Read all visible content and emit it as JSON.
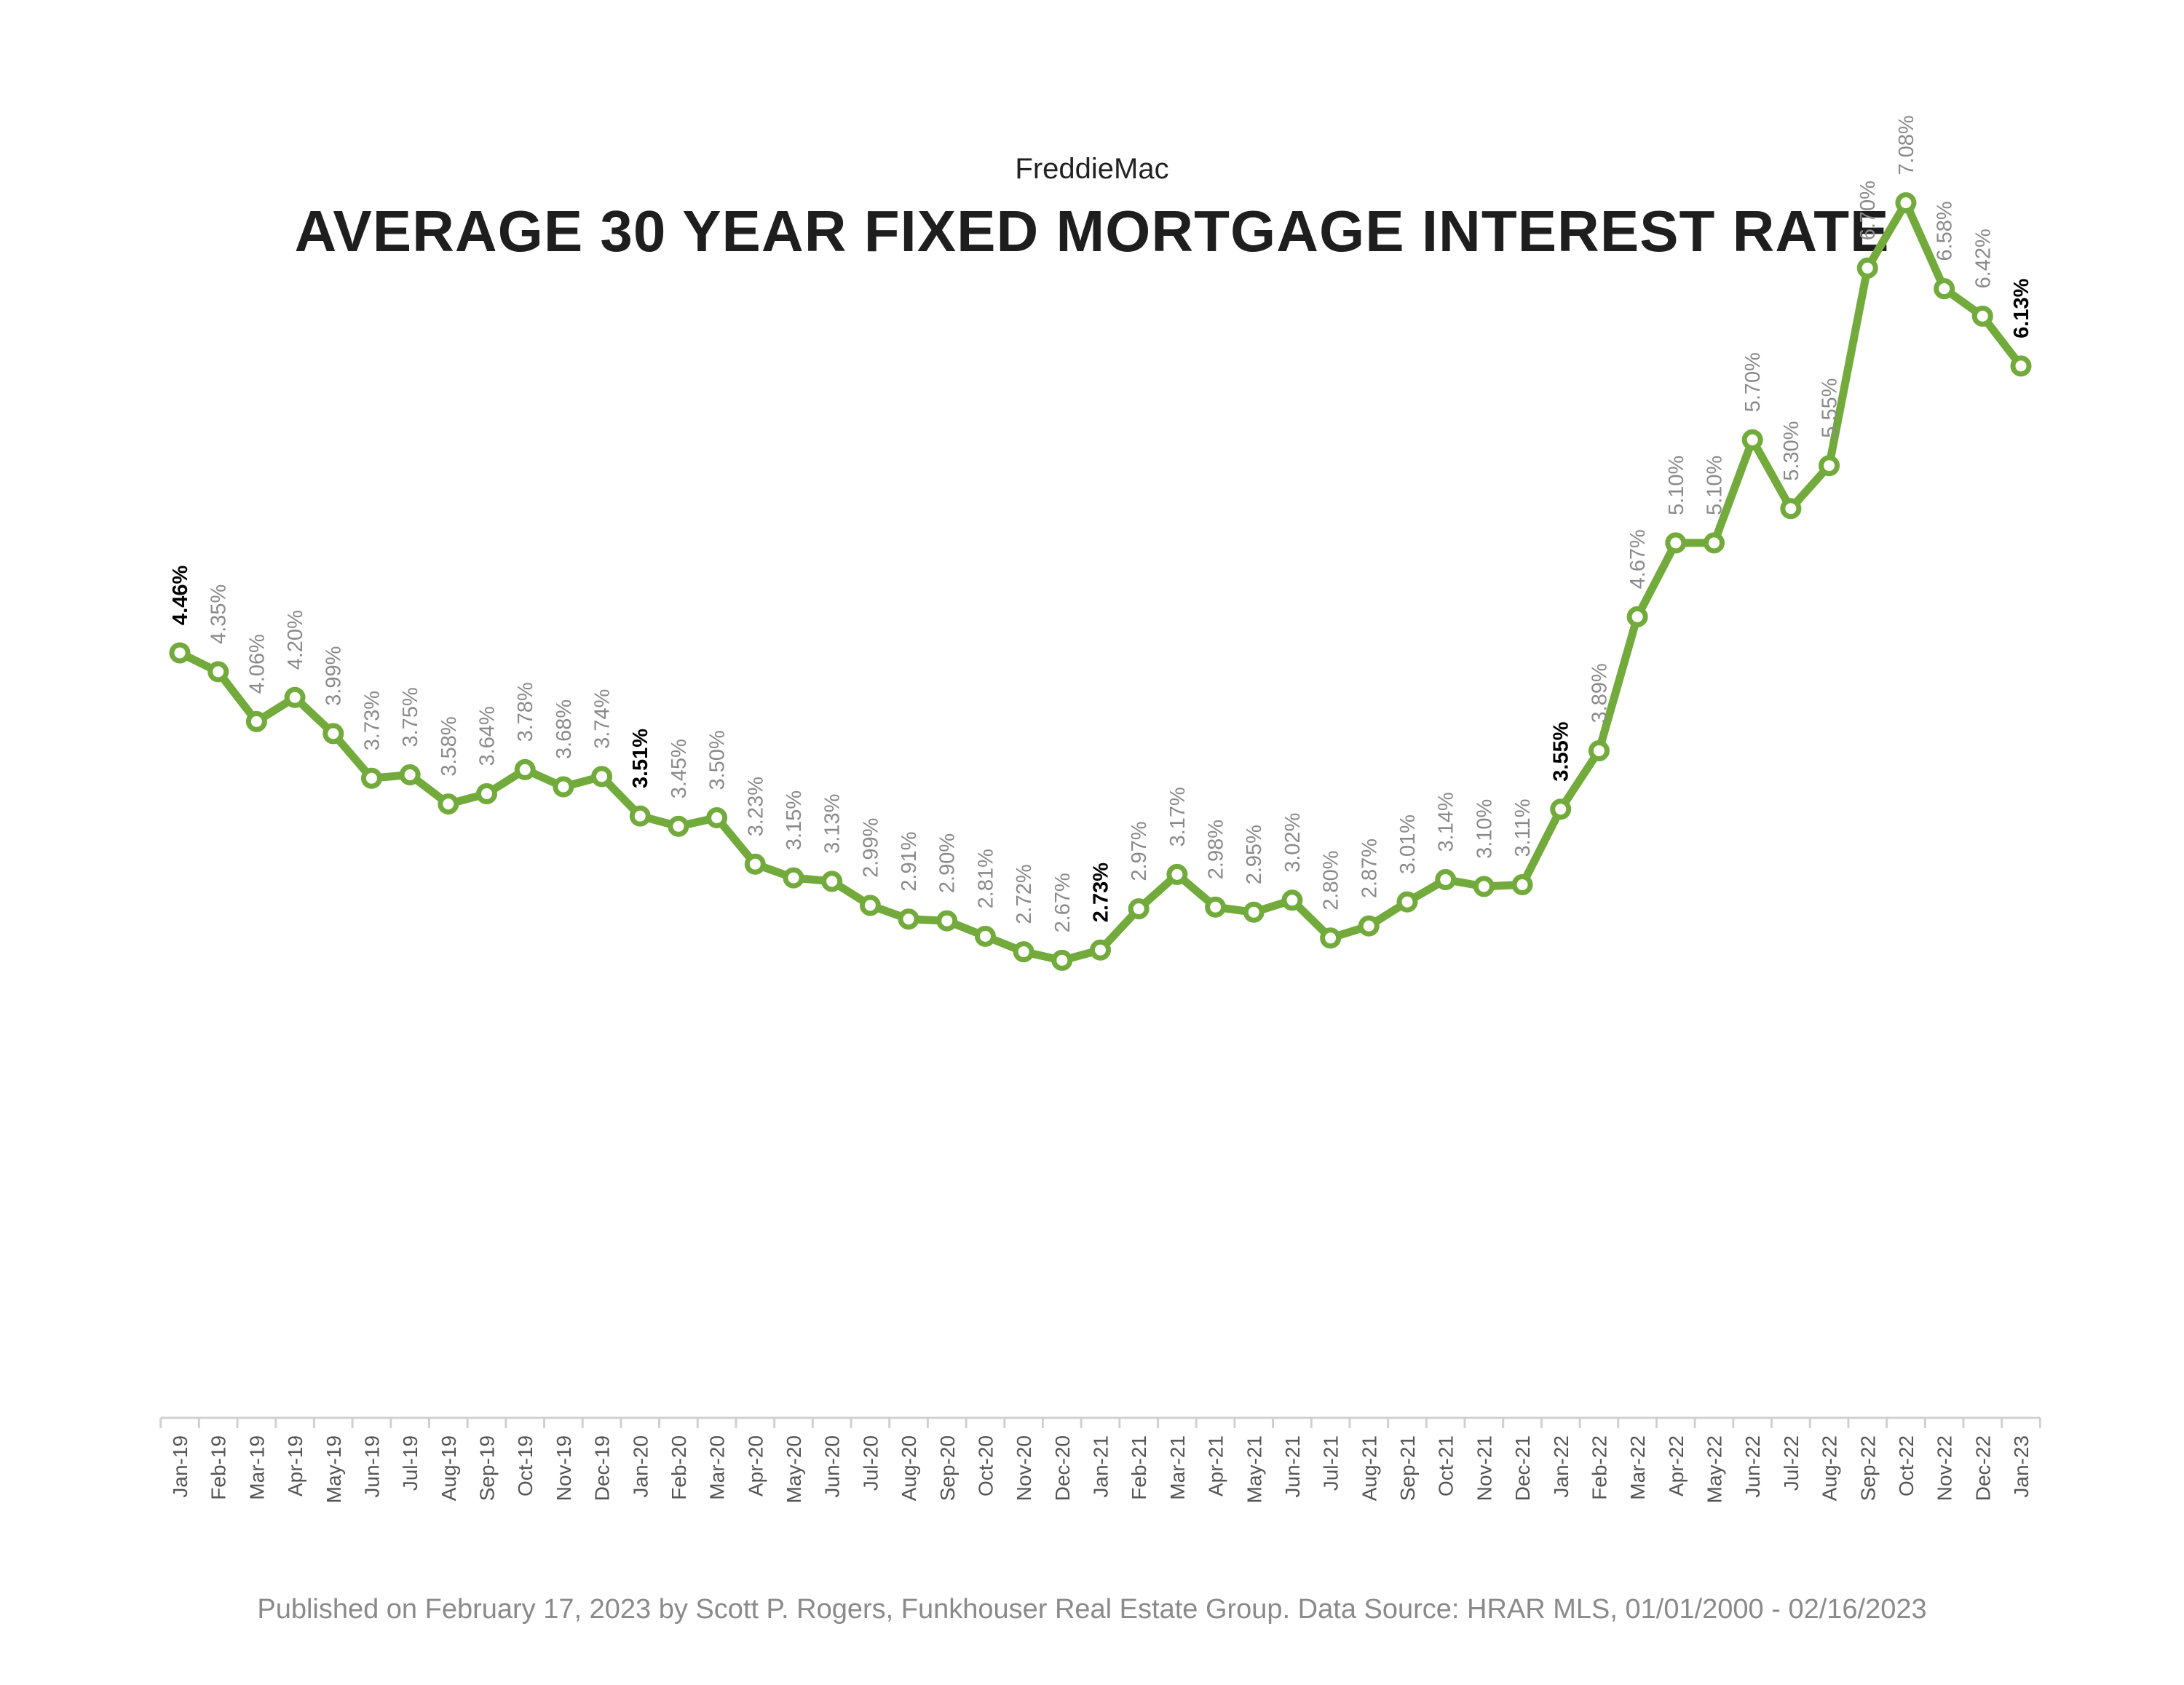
{
  "header": {
    "subtitle": "FreddieMac",
    "title": "AVERAGE 30 YEAR FIXED MORTGAGE INTEREST RATE"
  },
  "footer": {
    "text": "Published on February 17, 2023 by Scott P. Rogers, Funkhouser Real Estate Group. Data Source: HRAR MLS, 01/01/2000 - 02/16/2023"
  },
  "colors": {
    "line": "#72ab3c",
    "marker_fill": "#ffffff",
    "label": "#8a8a8a",
    "highlight_label": "#000000",
    "axis": "#d0d0d0"
  },
  "chart_data": {
    "type": "line",
    "title": "AVERAGE 30 YEAR FIXED MORTGAGE INTEREST RATE",
    "subtitle": "FreddieMac",
    "xlabel": "",
    "ylabel": "",
    "ylim": [
      0,
      8
    ],
    "grid": false,
    "legend": "none",
    "categories": [
      "Jan-19",
      "Feb-19",
      "Mar-19",
      "Apr-19",
      "May-19",
      "Jun-19",
      "Jul-19",
      "Aug-19",
      "Sep-19",
      "Oct-19",
      "Nov-19",
      "Dec-19",
      "Jan-20",
      "Feb-20",
      "Mar-20",
      "Apr-20",
      "May-20",
      "Jun-20",
      "Jul-20",
      "Aug-20",
      "Sep-20",
      "Oct-20",
      "Nov-20",
      "Dec-20",
      "Jan-21",
      "Feb-21",
      "Mar-21",
      "Apr-21",
      "May-21",
      "Jun-21",
      "Jul-21",
      "Aug-21",
      "Sep-21",
      "Oct-21",
      "Nov-21",
      "Dec-21",
      "Jan-22",
      "Feb-22",
      "Mar-22",
      "Apr-22",
      "May-22",
      "Jun-22",
      "Jul-22",
      "Aug-22",
      "Sep-22",
      "Oct-22",
      "Nov-22",
      "Dec-22",
      "Jan-23"
    ],
    "values": [
      4.46,
      4.35,
      4.06,
      4.2,
      3.99,
      3.73,
      3.75,
      3.58,
      3.64,
      3.78,
      3.68,
      3.74,
      3.51,
      3.45,
      3.5,
      3.23,
      3.15,
      3.13,
      2.99,
      2.91,
      2.9,
      2.81,
      2.72,
      2.67,
      2.73,
      2.97,
      3.17,
      2.98,
      2.95,
      3.02,
      2.8,
      2.87,
      3.01,
      3.14,
      3.1,
      3.11,
      3.55,
      3.89,
      4.67,
      5.1,
      5.1,
      5.7,
      5.3,
      5.55,
      6.7,
      7.08,
      6.58,
      6.42,
      6.13
    ],
    "labels": [
      "4.46%",
      "4.35%",
      "4.06%",
      "4.20%",
      "3.99%",
      "3.73%",
      "3.75%",
      "3.58%",
      "3.64%",
      "3.78%",
      "3.68%",
      "3.74%",
      "3.51%",
      "3.45%",
      "3.50%",
      "3.23%",
      "3.15%",
      "3.13%",
      "2.99%",
      "2.91%",
      "2.90%",
      "2.81%",
      "2.72%",
      "2.67%",
      "2.73%",
      "2.97%",
      "3.17%",
      "2.98%",
      "2.95%",
      "3.02%",
      "2.80%",
      "2.87%",
      "3.01%",
      "3.14%",
      "3.10%",
      "3.11%",
      "3.55%",
      "3.89%",
      "4.67%",
      "5.10%",
      "5.10%",
      "5.70%",
      "5.30%",
      "5.55%",
      "6.70%",
      "7.08%",
      "6.58%",
      "6.42%",
      "6.13%"
    ],
    "highlighted": [
      "Jan-19",
      "Jan-20",
      "Jan-21",
      "Jan-22",
      "Jan-23"
    ]
  }
}
